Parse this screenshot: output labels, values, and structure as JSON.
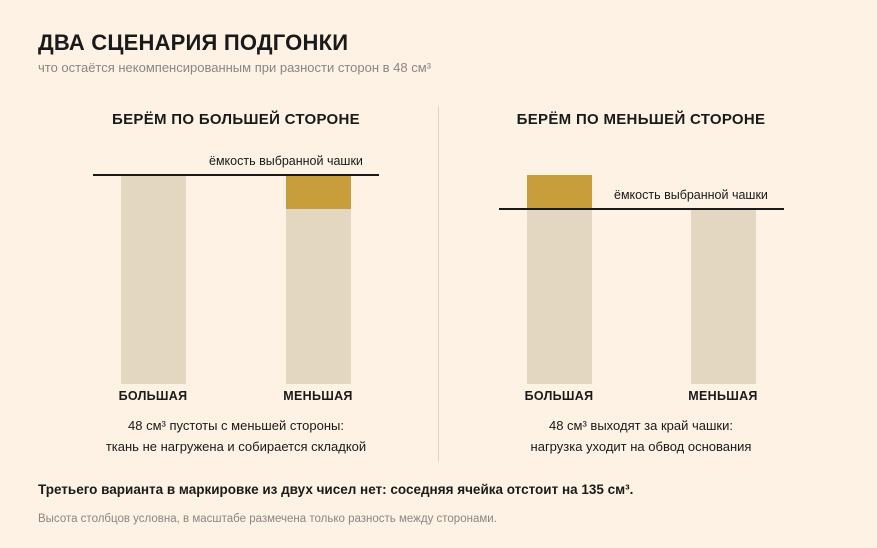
{
  "title": "ДВА СЦЕНАРИЯ ПОДГОНКИ",
  "subtitle": "что остаётся некомпенсированным при разности сторон в 48 см³",
  "colors": {
    "background": "#fdf2e3",
    "base_bar": "#e4d7c1",
    "difference": "#c89e3d",
    "line": "#1a1a1a"
  },
  "panels": [
    {
      "heading": "БЕРЁМ ПО БОЛЬШЕЙ СТОРОНЕ",
      "capacity_label": "ёмкость выбранной чашки",
      "bars": [
        {
          "label": "БОЛЬШАЯ",
          "difference": 0
        },
        {
          "label": "МЕНЬШАЯ",
          "difference": 48,
          "difference_type": "empty space"
        }
      ],
      "caption_line1": "48 см³ пустоты с меньшей стороны:",
      "caption_line2": "ткань не нагружена и собирается складкой"
    },
    {
      "heading": "БЕРЁМ ПО МЕНЬШЕЙ СТОРОНЕ",
      "capacity_label": "ёмкость выбранной чашки",
      "bars": [
        {
          "label": "БОЛЬШАЯ",
          "difference": 48,
          "difference_type": "overflow"
        },
        {
          "label": "МЕНЬШАЯ",
          "difference": 0
        }
      ],
      "caption_line1": "48 см³ выходят за край чашки:",
      "caption_line2": "нагрузка уходит на обвод основания"
    }
  ],
  "conclusion": "Третьего варианта в маркировке из двух чисел нет: соседняя ячейка отстоит на 135 см³.",
  "footnote": "Высота столбцов условна, в масштабе размечена только разность между сторонами.",
  "chart_data": [
    {
      "type": "bar",
      "title": "БЕРЁМ ПО БОЛЬШЕЙ СТОРОНЕ",
      "categories": [
        "БОЛЬШАЯ",
        "МЕНЬШАЯ"
      ],
      "difference_values": [
        0,
        48
      ],
      "reference_line": "ёмкость выбранной чашки",
      "unit": "см³"
    },
    {
      "type": "bar",
      "title": "БЕРЁМ ПО МЕНЬШЕЙ СТОРОНЕ",
      "categories": [
        "БОЛЬШАЯ",
        "МЕНЬШАЯ"
      ],
      "difference_values": [
        48,
        0
      ],
      "reference_line": "ёмкость выбранной чашки",
      "unit": "см³"
    }
  ]
}
